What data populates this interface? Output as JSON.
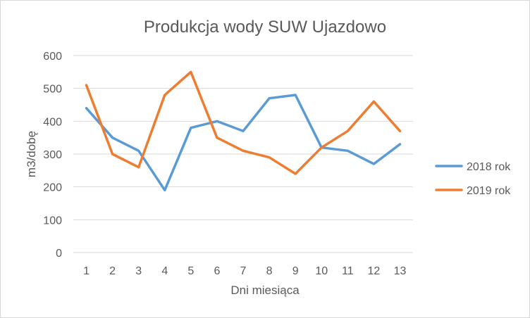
{
  "chart_data": {
    "type": "line",
    "title": "Produkcja wody SUW Ujazdowo",
    "xlabel": "Dni miesiąca",
    "ylabel": "m3/dobę",
    "categories": [
      "1",
      "2",
      "3",
      "4",
      "5",
      "6",
      "7",
      "8",
      "9",
      "10",
      "11",
      "12",
      "13"
    ],
    "ylim": [
      0,
      600
    ],
    "yticks": [
      0,
      100,
      200,
      300,
      400,
      500,
      600
    ],
    "ytick_labels": [
      "0",
      "100",
      "200",
      "300",
      "400",
      "500",
      "600"
    ],
    "grid": true,
    "legend_position": "right",
    "series": [
      {
        "name": "2018 rok",
        "color": "#5b9bd5",
        "values": [
          440,
          350,
          310,
          190,
          380,
          400,
          370,
          470,
          480,
          320,
          310,
          270,
          330
        ]
      },
      {
        "name": "2019 rok",
        "color": "#ed7d31",
        "values": [
          510,
          300,
          260,
          480,
          550,
          350,
          310,
          290,
          240,
          320,
          370,
          460,
          370
        ]
      }
    ]
  }
}
